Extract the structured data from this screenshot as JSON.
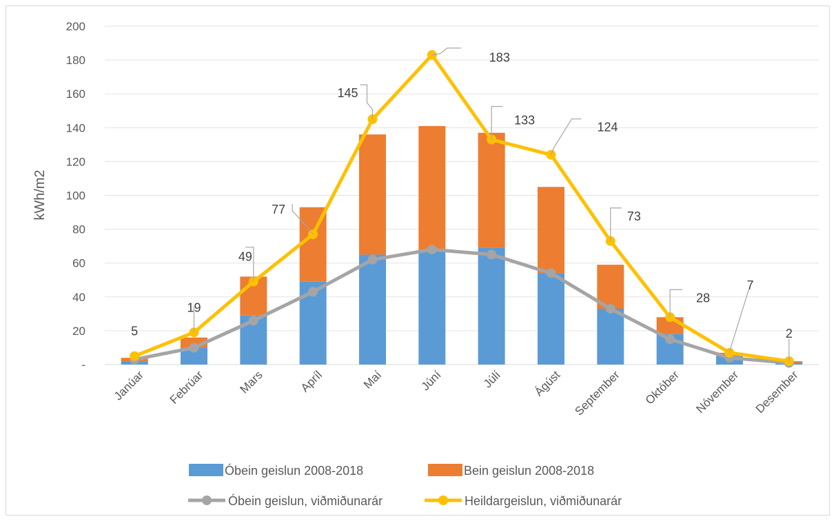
{
  "chart_data": {
    "type": "bar",
    "title": "",
    "xlabel": "",
    "ylabel": "kWh/m2",
    "ylim": [
      0,
      200
    ],
    "yticks": [
      0,
      20,
      40,
      60,
      80,
      100,
      120,
      140,
      160,
      180,
      200
    ],
    "ytick_labels": [
      "-",
      "20",
      "40",
      "60",
      "80",
      "100",
      "120",
      "140",
      "160",
      "180",
      "200"
    ],
    "grid": true,
    "legend_position": "bottom",
    "categories": [
      "Janúar",
      "Febrúar",
      "Mars",
      "Apríl",
      "Maí",
      "Júní",
      "Júlí",
      "Ágúst",
      "September",
      "Október",
      "Nóvember",
      "Desember"
    ],
    "bar_series": [
      {
        "name": "Óbein geislun 2008-2018",
        "color": "#5b9bd5",
        "values": [
          2,
          10,
          29,
          49,
          65,
          68,
          69,
          54,
          33,
          18,
          5,
          1
        ]
      },
      {
        "name": "Bein geislun 2008-2018",
        "color": "#ed7d31",
        "values": [
          2,
          6,
          23,
          44,
          71,
          73,
          68,
          51,
          26,
          10,
          2,
          1
        ]
      }
    ],
    "line_series": [
      {
        "name": "Óbein geislun, viðmiðunarár",
        "color": "#a5a5a5",
        "values": [
          3,
          10,
          26,
          43,
          62,
          68,
          65,
          54,
          33,
          15,
          4,
          1
        ]
      },
      {
        "name": "Heildargeislun, viðmiðunarár",
        "color": "#ffc000",
        "values": [
          5,
          19,
          49,
          77,
          145,
          183,
          133,
          124,
          73,
          28,
          7,
          2
        ],
        "data_labels": [
          "5",
          "19",
          "49",
          "77",
          "145",
          "183",
          "133",
          "124",
          "73",
          "28",
          "7",
          "2"
        ]
      }
    ]
  }
}
